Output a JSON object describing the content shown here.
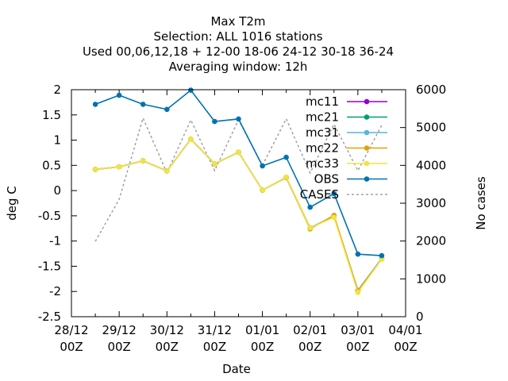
{
  "chart_data": {
    "type": "line",
    "title": [
      "Max T2m",
      "Selection: ALL   1016 stations",
      "Used  00,06,12,18 + 12-00 18-06 24-12 30-18 36-24",
      "Averaging window: 12h"
    ],
    "xlabel": "Date",
    "ylabel": "deg C",
    "y2label": "No cases",
    "x_ticks": [
      {
        "l1": "28/12",
        "l2": "00Z"
      },
      {
        "l1": "29/12",
        "l2": "00Z"
      },
      {
        "l1": "30/12",
        "l2": "00Z"
      },
      {
        "l1": "31/12",
        "l2": "00Z"
      },
      {
        "l1": "01/01",
        "l2": "00Z"
      },
      {
        "l1": "02/01",
        "l2": "00Z"
      },
      {
        "l1": "03/01",
        "l2": "00Z"
      },
      {
        "l1": "04/01",
        "l2": "00Z"
      }
    ],
    "xlim": [
      0,
      7
    ],
    "ylim": [
      -2.5,
      2
    ],
    "y_ticks": [
      "-2.5",
      "-2",
      "-1.5",
      "-1",
      "-0.5",
      "0",
      "0.5",
      "1",
      "1.5",
      "2"
    ],
    "y2lim": [
      0,
      6000
    ],
    "y2_ticks": [
      "0",
      "1000",
      "2000",
      "3000",
      "4000",
      "5000",
      "6000"
    ],
    "legend_position": "top-right",
    "x": [
      0.5,
      1.0,
      1.5,
      2.0,
      2.5,
      3.0,
      3.5,
      4.0,
      4.5,
      5.0,
      5.5,
      6.0,
      6.5
    ],
    "series": [
      {
        "name": "mc11",
        "color": "#9400d3",
        "marker": "dot",
        "axis": "y1",
        "values": [
          0.42,
          0.47,
          0.59,
          0.39,
          1.02,
          0.53,
          0.76,
          0.01,
          0.26,
          -0.74,
          -0.51,
          -1.98,
          -1.35
        ]
      },
      {
        "name": "mc21",
        "color": "#009e73",
        "marker": "dot",
        "axis": "y1",
        "values": [
          0.42,
          0.47,
          0.59,
          0.39,
          1.02,
          0.53,
          0.76,
          0.01,
          0.26,
          -0.74,
          -0.51,
          -1.98,
          -1.35
        ]
      },
      {
        "name": "mc31",
        "color": "#56b4e9",
        "marker": "dot",
        "axis": "y1",
        "values": [
          0.42,
          0.47,
          0.59,
          0.39,
          1.02,
          0.53,
          0.76,
          0.01,
          0.26,
          -0.74,
          -0.51,
          -1.98,
          -1.35
        ]
      },
      {
        "name": "mc22",
        "color": "#e69f00",
        "marker": "dot",
        "axis": "y1",
        "values": [
          0.42,
          0.47,
          0.59,
          0.39,
          1.02,
          0.53,
          0.76,
          0.01,
          0.26,
          -0.76,
          -0.49,
          -1.99,
          -1.36
        ]
      },
      {
        "name": "mc33",
        "color": "#f0e442",
        "marker": "dot",
        "axis": "y1",
        "values": [
          0.42,
          0.47,
          0.59,
          0.39,
          1.02,
          0.53,
          0.76,
          0.01,
          0.27,
          -0.74,
          -0.53,
          -2.02,
          -1.36
        ]
      },
      {
        "name": "OBS",
        "color": "#0072b2",
        "marker": "dot",
        "axis": "y1",
        "values": [
          1.71,
          1.89,
          1.71,
          1.61,
          1.99,
          1.37,
          1.42,
          0.49,
          0.66,
          -0.33,
          -0.06,
          -1.26,
          -1.29
        ]
      },
      {
        "name": "CASES",
        "color": "#a0a0a0",
        "marker": "none",
        "dash": true,
        "axis": "y2",
        "values": [
          1990,
          3100,
          5250,
          3800,
          5200,
          3860,
          5200,
          4000,
          5230,
          3800,
          5090,
          3860,
          5060
        ]
      }
    ]
  }
}
